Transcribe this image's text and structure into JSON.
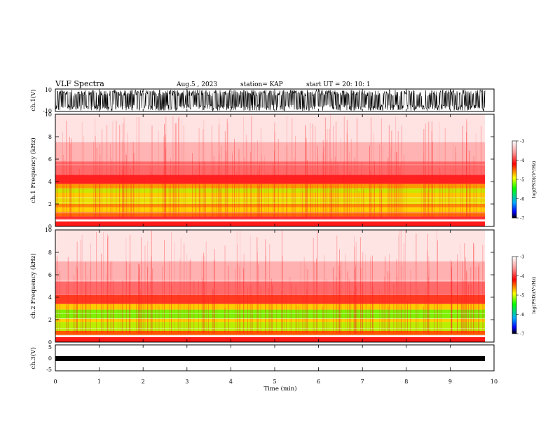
{
  "header": {
    "title": "VLF Spectra",
    "date": "Aug.5 , 2023",
    "station": "station= KAP",
    "start": "start UT = 20: 10: 1"
  },
  "chart_data": [
    {
      "type": "line",
      "panel": "ch1-waveform",
      "ylabel": "ch.1(V)",
      "ylim": [
        -10,
        10
      ],
      "yticks": [
        "10",
        "-10"
      ],
      "xlim": [
        0,
        10
      ]
    },
    {
      "type": "heatmap",
      "panel": "ch1-spectrogram",
      "ylabel": "ch.1 Frequency (kHz)",
      "ylim": [
        0,
        10
      ],
      "yticks": [
        "0",
        "2",
        "4",
        "6",
        "8",
        "10"
      ],
      "xlim": [
        0,
        10
      ],
      "colorbar": {
        "label": "log(PSD)(V²/Hz)",
        "range": [
          -7,
          -3
        ],
        "ticks": [
          "-3",
          "-4",
          "-5",
          "-6",
          "-7"
        ]
      }
    },
    {
      "type": "heatmap",
      "panel": "ch2-spectrogram",
      "ylabel": "ch.2 Frequency (kHz)",
      "ylim": [
        0,
        10
      ],
      "yticks": [
        "0",
        "2",
        "4",
        "6",
        "8",
        "10"
      ],
      "xlim": [
        0,
        10
      ],
      "colorbar": {
        "label": "log(PSD)(V²/Hz)",
        "range": [
          -7,
          -3
        ],
        "ticks": [
          "-3",
          "-4",
          "-5",
          "-6",
          "-7"
        ]
      }
    },
    {
      "type": "line",
      "panel": "ch3-waveform",
      "ylabel": "ch.3(V)",
      "ylim": [
        -5,
        5
      ],
      "yticks": [
        "5",
        "0",
        "-5"
      ],
      "xlim": [
        0,
        10
      ]
    }
  ],
  "xaxis": {
    "label": "Time (min)",
    "ticks": [
      "0",
      "1",
      "2",
      "3",
      "4",
      "5",
      "6",
      "7",
      "8",
      "9",
      "10"
    ]
  },
  "colors": {
    "colormap": [
      "#ffffff",
      "#ff0000",
      "#ffff00",
      "#00ff00",
      "#0000ff",
      "#000000"
    ]
  }
}
